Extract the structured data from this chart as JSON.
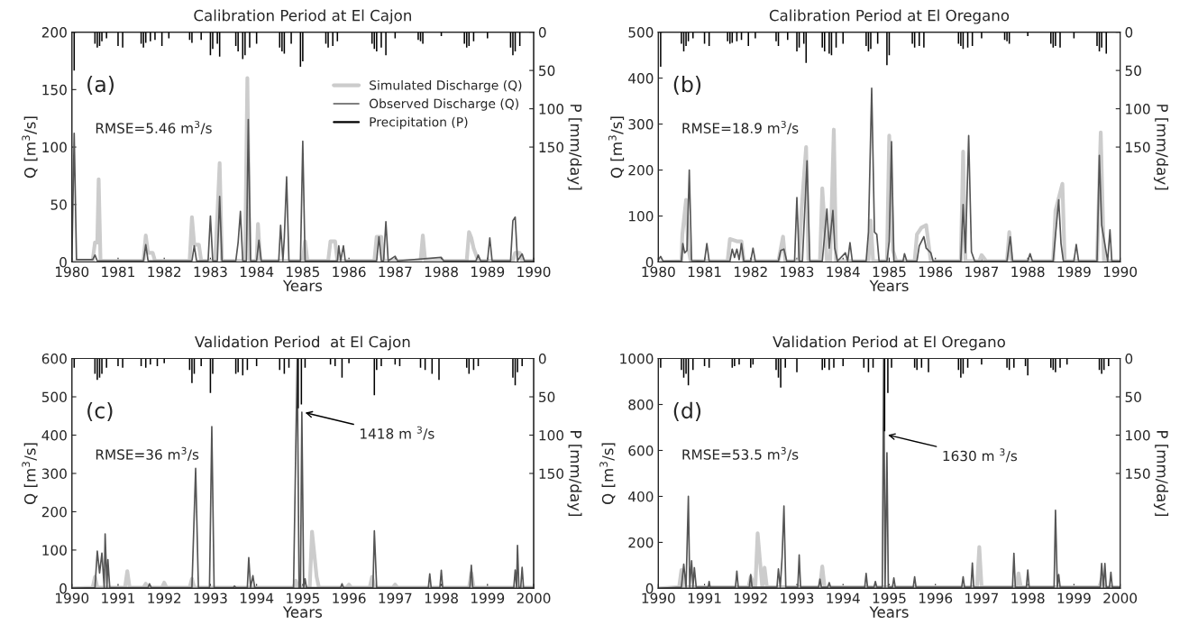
{
  "chart_data": [
    {
      "type": "line",
      "title": "Calibration Period at El Cajon",
      "xlabel": "Years",
      "ylabel": "Q [m$^{3}$/s]",
      "y2label": "P [mm/day]",
      "xlim": [
        1980,
        1990
      ],
      "xticks": [
        1980,
        1981,
        1982,
        1983,
        1984,
        1985,
        1986,
        1987,
        1988,
        1989,
        1990
      ],
      "ylim": [
        0,
        200
      ],
      "yticks": [
        0,
        50,
        100,
        150,
        200
      ],
      "y2lim": [
        300,
        0
      ],
      "y2ticks": [
        0,
        50,
        100,
        150
      ],
      "legend": "top right",
      "annotations": [
        "(a)",
        "RMSE=5.46 m$^{3}$/s"
      ],
      "series": [
        {
          "name": "Simulated Discharge (Q)",
          "type": "line",
          "color": "#cccccc",
          "x": [
            1980,
            1980.45,
            1980.5,
            1980.55,
            1980.58,
            1980.62,
            1981.55,
            1981.6,
            1981.65,
            1981.75,
            1981.8,
            1982.55,
            1982.6,
            1982.65,
            1982.75,
            1982.8,
            1983.1,
            1983.15,
            1983.2,
            1983.25,
            1983.75,
            1983.8,
            1983.85,
            1984.0,
            1984.03,
            1984.08,
            1985.0,
            1985.05,
            1985.1,
            1985.55,
            1985.6,
            1985.7,
            1985.75,
            1986.55,
            1986.6,
            1986.7,
            1986.75,
            1987.55,
            1987.6,
            1987.65,
            1988.55,
            1988.6,
            1988.65,
            1988.7,
            1988.8,
            1989.55,
            1989.6,
            1989.7,
            1989.75,
            1990
          ],
          "values": [
            0,
            1,
            17,
            17,
            72,
            1,
            1,
            23,
            8,
            8,
            1,
            1,
            39,
            15,
            15,
            1,
            1,
            40,
            86,
            1,
            1,
            160,
            1,
            1,
            33,
            1,
            1,
            18,
            1,
            1,
            18,
            18,
            1,
            1,
            22,
            22,
            1,
            1,
            23,
            1,
            1,
            26,
            21,
            12,
            1,
            1,
            8,
            8,
            1,
            1
          ]
        },
        {
          "name": "Observed Discharge (Q)",
          "type": "line",
          "color": "#555555",
          "x": [
            1980.0,
            1980.05,
            1980.1,
            1980.45,
            1980.5,
            1980.55,
            1981.55,
            1981.6,
            1981.65,
            1982.6,
            1982.65,
            1982.7,
            1982.95,
            1983.0,
            1983.05,
            1983.15,
            1983.2,
            1983.25,
            1983.55,
            1983.6,
            1983.65,
            1983.7,
            1983.78,
            1983.82,
            1983.87,
            1984.0,
            1984.05,
            1984.1,
            1984.48,
            1984.52,
            1984.57,
            1984.6,
            1984.65,
            1984.7,
            1984.95,
            1985.0,
            1985.05,
            1985.75,
            1985.78,
            1985.82,
            1985.88,
            1985.92,
            1986.6,
            1986.65,
            1986.7,
            1986.75,
            1986.8,
            1986.85,
            1987.0,
            1987.05,
            1988.0,
            1988.05,
            1988.75,
            1988.8,
            1988.85,
            1989.0,
            1989.05,
            1989.1,
            1989.5,
            1989.55,
            1989.6,
            1989.65,
            1989.75,
            1989.8,
            1990.0
          ],
          "values": [
            0,
            112,
            2,
            2,
            6,
            1,
            1,
            15,
            1,
            1,
            14,
            1,
            1,
            40,
            1,
            1,
            57,
            1,
            1,
            17,
            44,
            1,
            1,
            124,
            1,
            1,
            19,
            1,
            1,
            32,
            1,
            21,
            74,
            1,
            1,
            105,
            1,
            1,
            14,
            1,
            14,
            1,
            1,
            22,
            1,
            1,
            35,
            1,
            5,
            1,
            4,
            1,
            1,
            6,
            1,
            1,
            21,
            1,
            1,
            36,
            39,
            1,
            7,
            1,
            1
          ]
        },
        {
          "name": "Precipitation (P)",
          "type": "bar",
          "axis": "y2",
          "color": "#000000",
          "x": [
            1980.05,
            1980.5,
            1980.55,
            1980.6,
            1980.65,
            1980.75,
            1981.0,
            1981.1,
            1981.5,
            1981.55,
            1981.6,
            1981.7,
            1981.8,
            1981.95,
            1982.1,
            1982.55,
            1982.6,
            1982.8,
            1983.0,
            1983.05,
            1983.15,
            1983.2,
            1983.55,
            1983.6,
            1983.7,
            1983.75,
            1983.85,
            1984.0,
            1984.5,
            1984.55,
            1984.6,
            1984.75,
            1984.95,
            1985.0,
            1985.5,
            1985.55,
            1985.65,
            1985.75,
            1986.5,
            1986.55,
            1986.6,
            1986.7,
            1986.8,
            1987.0,
            1987.5,
            1987.55,
            1987.6,
            1988.0,
            1988.5,
            1988.55,
            1988.6,
            1988.7,
            1989.0,
            1989.5,
            1989.55,
            1989.6,
            1989.7
          ],
          "values": [
            50,
            15,
            20,
            18,
            12,
            8,
            18,
            20,
            15,
            20,
            14,
            12,
            10,
            18,
            8,
            10,
            14,
            10,
            30,
            22,
            15,
            32,
            18,
            25,
            35,
            30,
            20,
            15,
            20,
            25,
            28,
            15,
            45,
            38,
            15,
            20,
            18,
            12,
            15,
            22,
            25,
            20,
            30,
            8,
            10,
            12,
            15,
            5,
            15,
            20,
            18,
            12,
            8,
            20,
            30,
            25,
            18
          ]
        }
      ]
    },
    {
      "type": "line",
      "title": "Calibration Period at El Oregano",
      "xlabel": "Years",
      "ylabel": "Q [m$^{3}$/s]",
      "y2label": "P [mm/day]",
      "xlim": [
        1980,
        1990
      ],
      "xticks": [
        1980,
        1981,
        1982,
        1983,
        1984,
        1985,
        1986,
        1987,
        1988,
        1989,
        1990
      ],
      "ylim": [
        0,
        500
      ],
      "yticks": [
        0,
        100,
        200,
        300,
        400,
        500
      ],
      "y2lim": [
        300,
        0
      ],
      "y2ticks": [
        0,
        50,
        100,
        150
      ],
      "annotations": [
        "(b)",
        "RMSE=18.9 m$^{3}$/s"
      ],
      "series": [
        {
          "type": "line",
          "color": "#cccccc",
          "x": [
            1980,
            1980.5,
            1980.52,
            1980.6,
            1980.65,
            1980.7,
            1981.5,
            1981.55,
            1981.7,
            1981.8,
            1981.85,
            1982.6,
            1982.7,
            1982.75,
            1983.05,
            1983.1,
            1983.2,
            1983.25,
            1983.5,
            1983.55,
            1983.65,
            1983.72,
            1983.8,
            1983.85,
            1984.55,
            1984.6,
            1984.65,
            1984.95,
            1985.0,
            1985.08,
            1985.15,
            1985.55,
            1985.6,
            1985.7,
            1985.8,
            1985.9,
            1986.55,
            1986.6,
            1986.65,
            1986.95,
            1987.0,
            1987.1,
            1987.55,
            1987.6,
            1987.65,
            1988.55,
            1988.6,
            1988.75,
            1988.8,
            1989.5,
            1989.58,
            1989.65,
            1990
          ],
          "values": [
            0,
            2,
            60,
            135,
            30,
            2,
            2,
            50,
            45,
            45,
            2,
            2,
            55,
            2,
            2,
            112,
            250,
            2,
            2,
            160,
            2,
            2,
            288,
            2,
            2,
            90,
            2,
            2,
            275,
            25,
            2,
            2,
            60,
            75,
            80,
            2,
            2,
            240,
            2,
            2,
            15,
            2,
            2,
            65,
            2,
            2,
            112,
            170,
            2,
            2,
            282,
            2,
            2
          ]
        },
        {
          "type": "line",
          "color": "#555555",
          "x": [
            1980,
            1980.05,
            1980.1,
            1980.5,
            1980.53,
            1980.57,
            1980.62,
            1980.67,
            1980.72,
            1981.0,
            1981.05,
            1981.1,
            1981.55,
            1981.6,
            1981.65,
            1981.7,
            1981.75,
            1981.8,
            1981.85,
            1982.0,
            1982.05,
            1982.1,
            1982.6,
            1982.65,
            1982.72,
            1982.78,
            1982.95,
            1983.0,
            1983.05,
            1983.12,
            1983.15,
            1983.22,
            1983.28,
            1983.55,
            1983.6,
            1983.65,
            1983.7,
            1983.78,
            1983.82,
            1983.88,
            1984.05,
            1984.1,
            1984.15,
            1984.2,
            1984.5,
            1984.55,
            1984.62,
            1984.68,
            1984.73,
            1984.78,
            1984.95,
            1985.0,
            1985.05,
            1985.1,
            1985.3,
            1985.33,
            1985.38,
            1985.6,
            1985.65,
            1985.75,
            1985.8,
            1985.9,
            1985.95,
            1986.55,
            1986.6,
            1986.65,
            1986.72,
            1986.78,
            1986.85,
            1987.55,
            1987.62,
            1987.67,
            1988.0,
            1988.05,
            1988.1,
            1988.55,
            1988.6,
            1988.67,
            1988.72,
            1988.77,
            1989.0,
            1989.05,
            1989.1,
            1989.5,
            1989.55,
            1989.6,
            1989.67,
            1989.73,
            1989.78,
            1989.82,
            1990
          ],
          "values": [
            5,
            12,
            2,
            2,
            40,
            20,
            25,
            200,
            3,
            2,
            40,
            2,
            2,
            28,
            10,
            28,
            5,
            40,
            2,
            2,
            30,
            2,
            2,
            25,
            28,
            2,
            2,
            140,
            2,
            2,
            68,
            220,
            2,
            2,
            58,
            115,
            30,
            112,
            30,
            2,
            20,
            2,
            42,
            2,
            2,
            65,
            378,
            65,
            60,
            2,
            2,
            45,
            262,
            2,
            2,
            18,
            2,
            2,
            35,
            55,
            30,
            20,
            2,
            2,
            125,
            20,
            275,
            22,
            2,
            2,
            55,
            2,
            2,
            18,
            2,
            2,
            58,
            135,
            40,
            2,
            2,
            38,
            2,
            2,
            232,
            80,
            38,
            2,
            70,
            2,
            2
          ]
        },
        {
          "type": "bar",
          "axis": "y2",
          "color": "#000000",
          "x": [
            1980.05,
            1980.5,
            1980.55,
            1980.6,
            1980.65,
            1980.75,
            1981.0,
            1981.1,
            1981.5,
            1981.55,
            1981.6,
            1981.7,
            1981.8,
            1981.95,
            1982.1,
            1982.55,
            1982.6,
            1982.8,
            1983.0,
            1983.05,
            1983.15,
            1983.2,
            1983.55,
            1983.6,
            1983.7,
            1983.75,
            1983.85,
            1984.0,
            1984.5,
            1984.55,
            1984.6,
            1984.75,
            1984.95,
            1985.0,
            1985.5,
            1985.55,
            1985.65,
            1985.75,
            1986.5,
            1986.55,
            1986.6,
            1986.7,
            1986.8,
            1987.0,
            1987.5,
            1987.55,
            1987.6,
            1988.0,
            1988.5,
            1988.55,
            1988.6,
            1988.7,
            1989.0,
            1989.5,
            1989.55,
            1989.6,
            1989.7
          ],
          "values": [
            45,
            15,
            25,
            18,
            12,
            8,
            15,
            18,
            12,
            15,
            14,
            12,
            10,
            18,
            8,
            12,
            18,
            10,
            25,
            20,
            15,
            40,
            20,
            25,
            28,
            30,
            20,
            15,
            18,
            25,
            22,
            15,
            43,
            30,
            15,
            20,
            18,
            20,
            15,
            18,
            22,
            20,
            18,
            8,
            10,
            12,
            15,
            5,
            15,
            20,
            18,
            20,
            8,
            18,
            25,
            20,
            28
          ]
        }
      ]
    },
    {
      "type": "line",
      "title": "Validation Period  at El Cajon",
      "xlabel": "Years",
      "ylabel": "Q [m$^{3}$/s]",
      "y2label": "P [mm/day]",
      "xlim": [
        1990,
        2000
      ],
      "xticks": [
        1990,
        1991,
        1992,
        1993,
        1994,
        1995,
        1996,
        1997,
        1998,
        1999,
        2000
      ],
      "ylim": [
        0,
        600
      ],
      "yticks": [
        0,
        100,
        200,
        300,
        400,
        500,
        600
      ],
      "y2lim": [
        300,
        0
      ],
      "y2ticks": [
        0,
        50,
        100,
        150
      ],
      "annotations": [
        "(c)",
        "RMSE=36 m$^{3}$/s",
        {
          "text": "1418 m $^{3}$/s",
          "x": 1995.0,
          "y": 460
        }
      ],
      "series": [
        {
          "type": "line",
          "color": "#cccccc",
          "x": [
            1990,
            1990.45,
            1990.5,
            1990.55,
            1991.15,
            1991.2,
            1991.25,
            1991.55,
            1991.6,
            1991.65,
            1991.95,
            1992.0,
            1992.05,
            1992.55,
            1992.6,
            1992.65,
            1994.8,
            1994.85,
            1994.9,
            1995.15,
            1995.2,
            1995.3,
            1995.35,
            1995.95,
            1996.0,
            1996.05,
            1996.45,
            1996.5,
            1996.55,
            1996.95,
            1997.0,
            1997.05,
            1998.6,
            1998.65,
            1998.7,
            2000
          ],
          "values": [
            0,
            2,
            30,
            2,
            2,
            45,
            2,
            2,
            12,
            2,
            2,
            15,
            2,
            2,
            25,
            2,
            2,
            20,
            2,
            2,
            148,
            30,
            2,
            2,
            10,
            2,
            2,
            30,
            2,
            2,
            10,
            2,
            2,
            40,
            2,
            2
          ]
        },
        {
          "type": "line",
          "color": "#555555",
          "x": [
            1990,
            1990.5,
            1990.55,
            1990.6,
            1990.65,
            1990.7,
            1990.72,
            1990.76,
            1990.78,
            1990.82,
            1991.65,
            1991.68,
            1991.72,
            1992.6,
            1992.68,
            1992.74,
            1992.98,
            1993.03,
            1993.08,
            1993.5,
            1993.52,
            1993.55,
            1993.8,
            1993.83,
            1993.87,
            1993.92,
            1993.96,
            1994.8,
            1994.88,
            1994.92,
            1994.95,
            1994.98,
            1995.02,
            1995.05,
            1995.08,
            1995.82,
            1995.85,
            1995.88,
            1996.52,
            1996.55,
            1996.6,
            1997.72,
            1997.75,
            1997.78,
            1997.97,
            1998.0,
            1998.03,
            1998.62,
            1998.65,
            1998.68,
            1999.57,
            1999.6,
            1999.63,
            1999.65,
            1999.68,
            1999.72,
            1999.75,
            1999.78,
            2000
          ],
          "values": [
            0,
            2,
            97,
            40,
            92,
            2,
            142,
            2,
            75,
            2,
            2,
            12,
            2,
            2,
            313,
            2,
            2,
            422,
            2,
            2,
            6,
            2,
            2,
            80,
            2,
            33,
            2,
            2,
            600,
            2,
            2,
            460,
            2,
            25,
            2,
            2,
            12,
            2,
            2,
            150,
            2,
            2,
            38,
            2,
            2,
            47,
            2,
            2,
            60,
            2,
            2,
            48,
            2,
            112,
            2,
            2,
            55,
            2,
            2
          ]
        },
        {
          "type": "bar",
          "axis": "y2",
          "color": "#000000",
          "x": [
            1990.05,
            1990.5,
            1990.55,
            1990.6,
            1990.65,
            1990.75,
            1991.0,
            1991.1,
            1991.5,
            1991.6,
            1991.7,
            1991.85,
            1992.0,
            1992.55,
            1992.6,
            1992.65,
            1992.8,
            1993.0,
            1993.05,
            1993.55,
            1993.6,
            1993.7,
            1993.8,
            1994.0,
            1994.5,
            1994.6,
            1994.7,
            1994.9,
            1994.97,
            1995.05,
            1995.6,
            1995.7,
            1995.85,
            1996.0,
            1996.55,
            1996.6,
            1996.7,
            1997.0,
            1997.1,
            1997.55,
            1997.65,
            1997.8,
            1997.95,
            1998.55,
            1998.6,
            1998.7,
            1998.8,
            1999.55,
            1999.6,
            1999.65,
            1999.75
          ],
          "values": [
            12,
            20,
            28,
            25,
            20,
            12,
            10,
            12,
            10,
            12,
            8,
            10,
            6,
            15,
            32,
            20,
            10,
            45,
            20,
            20,
            18,
            22,
            15,
            10,
            15,
            20,
            12,
            65,
            60,
            12,
            8,
            10,
            25,
            6,
            48,
            15,
            10,
            8,
            10,
            12,
            15,
            20,
            28,
            12,
            20,
            15,
            10,
            25,
            35,
            18,
            10
          ]
        }
      ]
    },
    {
      "type": "line",
      "title": "Validation Period at El Oregano",
      "xlabel": "Years",
      "ylabel": "Q [m$^{3}$/s]",
      "y2label": "P [mm/day]",
      "xlim": [
        1990,
        2000
      ],
      "xticks": [
        1990,
        1991,
        1992,
        1993,
        1994,
        1995,
        1996,
        1997,
        1998,
        1999,
        2000
      ],
      "ylim": [
        0,
        1000
      ],
      "yticks": [
        0,
        200,
        400,
        600,
        800,
        1000
      ],
      "y2lim": [
        300,
        0
      ],
      "y2ticks": [
        0,
        50,
        100,
        150
      ],
      "annotations": [
        "(d)",
        "RMSE=53.5 m$^{3}$/s",
        {
          "text": "1630 m $^{3}$/s",
          "x": 1994.92,
          "y": 670
        }
      ],
      "series": [
        {
          "type": "line",
          "color": "#cccccc",
          "x": [
            1990,
            1990.45,
            1990.5,
            1990.55,
            1991.95,
            1992.0,
            1992.1,
            1992.15,
            1992.25,
            1992.3,
            1992.35,
            1993.5,
            1993.55,
            1993.6,
            1996.9,
            1996.95,
            1997.0,
            1997.75,
            1997.8,
            1997.85,
            1999.55,
            1999.6,
            1999.65,
            2000
          ],
          "values": [
            0,
            5,
            80,
            5,
            5,
            50,
            5,
            240,
            5,
            90,
            5,
            5,
            95,
            5,
            5,
            180,
            5,
            5,
            65,
            5,
            5,
            40,
            5,
            5
          ]
        },
        {
          "type": "line",
          "color": "#555555",
          "x": [
            1990,
            1990.5,
            1990.55,
            1990.6,
            1990.65,
            1990.68,
            1990.72,
            1990.75,
            1990.78,
            1990.82,
            1991.08,
            1991.1,
            1991.12,
            1991.67,
            1991.7,
            1991.73,
            1991.97,
            1992.0,
            1992.03,
            1992.57,
            1992.6,
            1992.64,
            1992.68,
            1992.72,
            1992.76,
            1993.02,
            1993.05,
            1993.08,
            1993.47,
            1993.5,
            1993.53,
            1993.67,
            1993.7,
            1993.73,
            1994.47,
            1994.5,
            1994.53,
            1994.67,
            1994.7,
            1994.73,
            1994.85,
            1994.88,
            1994.91,
            1994.95,
            1994.98,
            1995.07,
            1995.1,
            1995.13,
            1995.52,
            1995.55,
            1995.58,
            1996.57,
            1996.6,
            1996.63,
            1996.77,
            1996.8,
            1996.83,
            1997.67,
            1997.7,
            1997.73,
            1997.97,
            1998.0,
            1998.03,
            1998.57,
            1998.6,
            1998.64,
            1998.67,
            1998.7,
            1999.57,
            1999.6,
            1999.64,
            1999.67,
            1999.7,
            1999.77,
            1999.8,
            1999.83,
            2000
          ],
          "values": [
            0,
            5,
            105,
            5,
            400,
            5,
            120,
            5,
            90,
            5,
            5,
            30,
            5,
            5,
            75,
            5,
            5,
            60,
            5,
            5,
            85,
            5,
            135,
            358,
            5,
            5,
            145,
            5,
            5,
            40,
            5,
            5,
            25,
            5,
            5,
            65,
            5,
            5,
            30,
            5,
            5,
            1000,
            5,
            590,
            5,
            5,
            45,
            5,
            5,
            50,
            5,
            5,
            50,
            5,
            5,
            110,
            5,
            5,
            152,
            5,
            5,
            80,
            5,
            5,
            340,
            5,
            60,
            5,
            5,
            108,
            5,
            108,
            5,
            5,
            70,
            5,
            5
          ]
        },
        {
          "type": "bar",
          "axis": "y2",
          "color": "#000000",
          "x": [
            1990.05,
            1990.5,
            1990.55,
            1990.6,
            1990.65,
            1990.75,
            1991.0,
            1991.1,
            1991.6,
            1991.65,
            1991.75,
            1992.0,
            1992.05,
            1992.55,
            1992.6,
            1992.65,
            1992.75,
            1993.0,
            1993.55,
            1993.6,
            1993.7,
            1993.8,
            1994.0,
            1994.45,
            1994.55,
            1994.65,
            1994.9,
            1994.97,
            1995.05,
            1995.55,
            1995.6,
            1995.7,
            1995.85,
            1996.5,
            1996.55,
            1996.6,
            1996.7,
            1997.0,
            1997.55,
            1997.6,
            1997.7,
            1997.95,
            1998.0,
            1998.5,
            1998.55,
            1998.6,
            1998.7,
            1998.85,
            1999.55,
            1999.6,
            1999.65,
            1999.75
          ],
          "values": [
            12,
            15,
            25,
            20,
            35,
            15,
            10,
            12,
            12,
            10,
            8,
            12,
            8,
            15,
            25,
            38,
            12,
            18,
            15,
            12,
            15,
            12,
            10,
            12,
            18,
            12,
            95,
            45,
            12,
            12,
            15,
            12,
            18,
            15,
            25,
            20,
            12,
            8,
            12,
            15,
            12,
            10,
            22,
            12,
            15,
            18,
            12,
            8,
            15,
            20,
            15,
            10
          ]
        }
      ]
    }
  ]
}
